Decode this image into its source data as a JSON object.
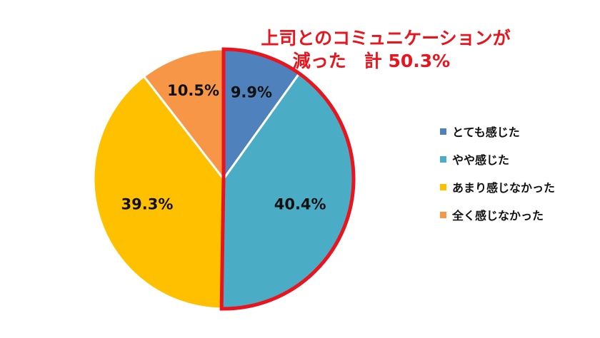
{
  "chart_data": {
    "type": "pie",
    "start_position": "12 o'clock",
    "direction": "clockwise",
    "slices": [
      {
        "label": "とても感じた",
        "value": 9.9,
        "display": "9.9%",
        "color": "#4f81bd"
      },
      {
        "label": "やや感じた",
        "value": 40.4,
        "display": "40.4%",
        "color": "#4bacc6"
      },
      {
        "label": "あまり感じなかった",
        "value": 39.3,
        "display": "39.3%",
        "color": "#ffc000"
      },
      {
        "label": "全く感じなかった",
        "value": 10.5,
        "display": "10.5%",
        "color": "#f79646"
      }
    ],
    "legend_position": "right",
    "highlight": {
      "slices": [
        0,
        1
      ],
      "outline_color": "#e8141e",
      "text_line1": "上司とのコミュニケーションが",
      "text_line2": "減った　計 50.3%"
    }
  }
}
